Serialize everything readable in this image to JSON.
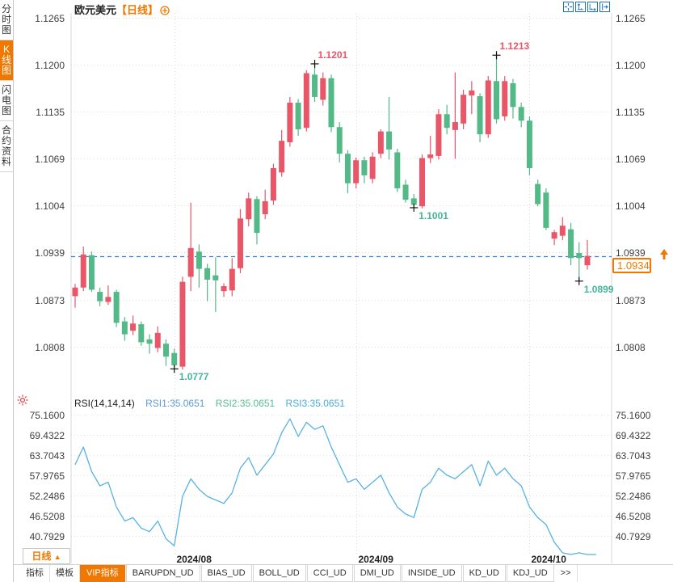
{
  "app": {
    "title": {
      "symbol": "欧元美元",
      "period_tag": "【日线】"
    }
  },
  "sidebar": {
    "items": [
      {
        "label": "分时图",
        "active": false
      },
      {
        "label": "K线图",
        "active": true
      },
      {
        "label": "闪电图",
        "active": false
      },
      {
        "label": "合约资料",
        "active": false
      }
    ]
  },
  "toolbar": {
    "icons": [
      {
        "name": "pan-crosshair-icon"
      },
      {
        "name": "zoom-axis-vertical-icon"
      },
      {
        "name": "zoom-axis-horizontal-icon"
      },
      {
        "name": "scroll-to-latest-icon"
      }
    ]
  },
  "main_chart": {
    "y_axis_labels": [
      "1.1265",
      "1.1200",
      "1.1135",
      "1.1069",
      "1.1004",
      "1.0939",
      "1.0873",
      "1.0808"
    ],
    "current_price": "1.0934",
    "x_axis_labels": [
      {
        "label": "2024/08",
        "candle_index": 12
      },
      {
        "label": "2024/09",
        "candle_index": 34
      },
      {
        "label": "2024/10",
        "candle_index": 55
      }
    ]
  },
  "rsi_panel": {
    "header": "RSI(14,14,14)",
    "series_labels": [
      {
        "label": "RSI1:35.0651",
        "color": "#5b9bd5"
      },
      {
        "label": "RSI2:35.0651",
        "color": "#53c08f"
      },
      {
        "label": "RSI3:35.0651",
        "color": "#47abdc"
      }
    ],
    "y_axis_labels": [
      "75.1600",
      "69.4322",
      "63.7043",
      "57.9765",
      "52.2486",
      "46.5208",
      "40.7929"
    ]
  },
  "period_selector": {
    "label": "日线",
    "arrow": "▲"
  },
  "bottom_tabs": {
    "items": [
      {
        "label": "指标",
        "active": false,
        "boxed": false
      },
      {
        "label": "模板",
        "active": false,
        "boxed": false
      },
      {
        "label": "VIP指标",
        "active": true,
        "boxed": true
      },
      {
        "label": "BARUPDN_UD",
        "active": false,
        "boxed": true
      },
      {
        "label": "BIAS_UD",
        "active": false,
        "boxed": true
      },
      {
        "label": "BOLL_UD",
        "active": false,
        "boxed": true
      },
      {
        "label": "CCI_UD",
        "active": false,
        "boxed": true
      },
      {
        "label": "DMI_UD",
        "active": false,
        "boxed": true
      },
      {
        "label": "INSIDE_UD",
        "active": false,
        "boxed": true
      },
      {
        "label": "KD_UD",
        "active": false,
        "boxed": true
      },
      {
        "label": "KDJ_UD",
        "active": false,
        "boxed": true
      },
      {
        "label": ">>",
        "active": false,
        "boxed": false
      }
    ]
  },
  "colors": {
    "up_candle": "#e85668",
    "down_candle": "#53b987",
    "rsi_line": "#57b2e3",
    "dashed_price_line": "#2e7fe0",
    "accent_orange": "#f07800",
    "icon_blue": "#1d6fc9",
    "grid": "#dcdcdc",
    "axis_text": "#404040",
    "low_label": "#45b598",
    "high_label": "#e8556a",
    "settings_red": "#e0393e"
  },
  "chart_data": {
    "type": "candlestick",
    "title": "欧元美元 日线 (EUR/USD daily)",
    "y_axis_range": [
      1.0808,
      1.1265
    ],
    "x_gridlines": [
      "2024/08",
      "2024/09",
      "2024/10"
    ],
    "legend_position": "none",
    "grid": "dotted",
    "candles_ohlc": [
      [
        1.0878,
        1.0895,
        1.0862,
        1.089
      ],
      [
        1.089,
        1.0947,
        1.0885,
        1.0936
      ],
      [
        1.0935,
        1.094,
        1.0884,
        1.0887
      ],
      [
        1.0884,
        1.089,
        1.0864,
        1.0871
      ],
      [
        1.087,
        1.0893,
        1.0866,
        1.0877
      ],
      [
        1.0884,
        1.0887,
        1.0835,
        1.0841
      ],
      [
        1.0843,
        1.0849,
        1.0816,
        1.0825
      ],
      [
        1.083,
        1.0851,
        1.0824,
        1.084
      ],
      [
        1.0839,
        1.0843,
        1.0809,
        1.0814
      ],
      [
        1.0818,
        1.0825,
        1.0798,
        1.0812
      ],
      [
        1.0806,
        1.0836,
        1.08,
        1.0827
      ],
      [
        1.0812,
        1.0818,
        1.0781,
        1.0794
      ],
      [
        1.0799,
        1.0805,
        1.0777,
        1.0782
      ],
      [
        1.078,
        1.0905,
        1.0776,
        1.0898
      ],
      [
        1.0905,
        1.1008,
        1.0885,
        1.0945
      ],
      [
        1.094,
        1.095,
        1.089,
        1.0916
      ],
      [
        1.0917,
        1.0923,
        1.0871,
        1.0901
      ],
      [
        1.0907,
        1.0932,
        1.0856,
        1.09
      ],
      [
        1.0885,
        1.0896,
        1.0877,
        1.0892
      ],
      [
        1.0886,
        1.0931,
        1.0878,
        1.0916
      ],
      [
        1.0917,
        1.0999,
        1.091,
        1.0986
      ],
      [
        1.0985,
        1.1022,
        1.0975,
        1.1014
      ],
      [
        1.1013,
        1.1017,
        1.095,
        1.0966
      ],
      [
        1.0992,
        1.1026,
        1.0985,
        1.101
      ],
      [
        1.1011,
        1.1062,
        1.1005,
        1.1056
      ],
      [
        1.105,
        1.1109,
        1.1044,
        1.1094
      ],
      [
        1.1092,
        1.1155,
        1.1086,
        1.1147
      ],
      [
        1.1147,
        1.1152,
        1.1101,
        1.111
      ],
      [
        1.1112,
        1.1192,
        1.1107,
        1.1188
      ],
      [
        1.1186,
        1.1201,
        1.1148,
        1.1155
      ],
      [
        1.1151,
        1.1189,
        1.1143,
        1.1181
      ],
      [
        1.1181,
        1.1186,
        1.1106,
        1.1113
      ],
      [
        1.1113,
        1.112,
        1.1064,
        1.1076
      ],
      [
        1.1076,
        1.1081,
        1.1021,
        1.1035
      ],
      [
        1.1035,
        1.1071,
        1.1028,
        1.1067
      ],
      [
        1.1067,
        1.1072,
        1.1035,
        1.1046
      ],
      [
        1.1041,
        1.1078,
        1.1035,
        1.1072
      ],
      [
        1.1076,
        1.111,
        1.107,
        1.1107
      ],
      [
        1.1107,
        1.1155,
        1.1068,
        1.1082
      ],
      [
        1.1078,
        1.1083,
        1.1023,
        1.1028
      ],
      [
        1.1033,
        1.104,
        1.1008,
        1.1012
      ],
      [
        1.1014,
        1.102,
        1.1001,
        1.1005
      ],
      [
        1.1003,
        1.1075,
        1.1,
        1.107
      ],
      [
        1.107,
        1.1101,
        1.1063,
        1.1075
      ],
      [
        1.1073,
        1.1138,
        1.1068,
        1.1131
      ],
      [
        1.1131,
        1.1144,
        1.1103,
        1.1112
      ],
      [
        1.1109,
        1.1189,
        1.1069,
        1.112
      ],
      [
        1.1118,
        1.1165,
        1.111,
        1.1158
      ],
      [
        1.1157,
        1.1177,
        1.1131,
        1.1164
      ],
      [
        1.1156,
        1.116,
        1.1092,
        1.1103
      ],
      [
        1.1103,
        1.1184,
        1.1098,
        1.1178
      ],
      [
        1.1177,
        1.1213,
        1.1118,
        1.1124
      ],
      [
        1.1128,
        1.1184,
        1.1122,
        1.1177
      ],
      [
        1.1174,
        1.118,
        1.1125,
        1.1141
      ],
      [
        1.1141,
        1.1147,
        1.1113,
        1.1122
      ],
      [
        1.1122,
        1.1128,
        1.1046,
        1.1056
      ],
      [
        1.1034,
        1.104,
        1.1003,
        1.1006
      ],
      [
        1.1022,
        1.1028,
        1.097,
        1.0973
      ],
      [
        1.0958,
        1.097,
        1.0949,
        1.0967
      ],
      [
        1.0962,
        1.0988,
        1.0956,
        1.0976
      ],
      [
        1.0971,
        1.098,
        1.0921,
        1.0931
      ],
      [
        1.0938,
        1.0953,
        1.0899,
        1.0931
      ],
      [
        1.0921,
        1.0956,
        1.0915,
        1.0934
      ]
    ],
    "annotations": [
      {
        "candle_index": 29,
        "price": 1.1201,
        "label": "1.1201",
        "kind": "high"
      },
      {
        "candle_index": 51,
        "price": 1.1213,
        "label": "1.1213",
        "kind": "high"
      },
      {
        "candle_index": 12,
        "price": 1.0777,
        "label": "1.0777",
        "kind": "low"
      },
      {
        "candle_index": 41,
        "price": 1.1001,
        "label": "1.1001",
        "kind": "low"
      },
      {
        "candle_index": 61,
        "price": 1.0899,
        "label": "1.0899",
        "kind": "low"
      }
    ],
    "current_price_line": 1.0934,
    "rsi": {
      "type": "line",
      "params": "RSI(14,14,14)",
      "current_values": {
        "RSI1": 35.0651,
        "RSI2": 35.0651,
        "RSI3": 35.0651
      },
      "y_range_labels": [
        75.16,
        40.7929
      ],
      "values": [
        61,
        66,
        59,
        55,
        56,
        49,
        45,
        46,
        43,
        42,
        45,
        40,
        38,
        52,
        57,
        54,
        52,
        51,
        50,
        53,
        60,
        63,
        58,
        61,
        64,
        70,
        74,
        69,
        73,
        71,
        72,
        66,
        61,
        56,
        57,
        54,
        56,
        58,
        53,
        49,
        47,
        46,
        54,
        56,
        60,
        58,
        57,
        59,
        61,
        55,
        62,
        58,
        60,
        57,
        55,
        49,
        46,
        44,
        39,
        36,
        35,
        36,
        35
      ]
    }
  }
}
